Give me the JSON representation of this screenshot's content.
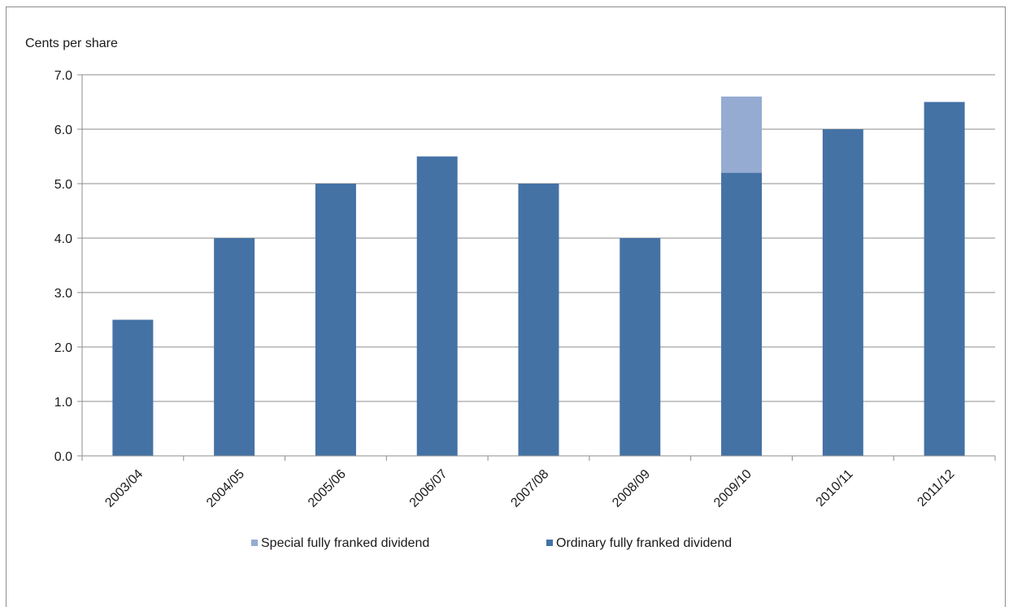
{
  "chart_data": {
    "type": "bar",
    "stacked": true,
    "title": "",
    "xlabel": "",
    "ylabel": "Cents per share",
    "ylim": [
      0,
      7
    ],
    "yticks": [
      "0.0",
      "1.0",
      "2.0",
      "3.0",
      "4.0",
      "5.0",
      "6.0",
      "7.0"
    ],
    "grid": true,
    "legend_position": "bottom",
    "categories": [
      "2003/04",
      "2004/05",
      "2005/06",
      "2006/07",
      "2007/08",
      "2008/09",
      "2009/10",
      "2010/11",
      "2011/12"
    ],
    "series": [
      {
        "name": "Ordinary fully franked dividend",
        "color": "#4472a5",
        "values": [
          2.5,
          4.0,
          5.0,
          5.5,
          5.0,
          4.0,
          5.2,
          6.0,
          6.5
        ]
      },
      {
        "name": "Special fully franked dividend",
        "color": "#95abd1",
        "values": [
          0,
          0,
          0,
          0,
          0,
          0,
          1.4,
          0,
          0
        ]
      }
    ],
    "legend_order": [
      "Special fully franked dividend",
      "Ordinary fully franked dividend"
    ]
  }
}
